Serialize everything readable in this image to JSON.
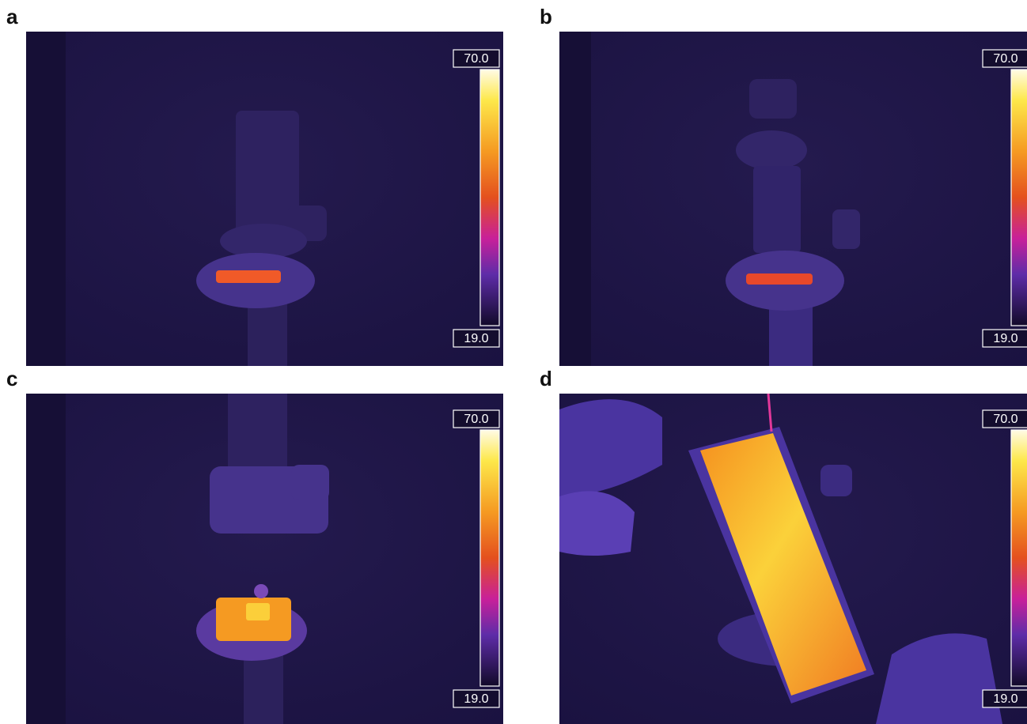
{
  "panels": [
    {
      "label": "a",
      "scale_max": "70.0",
      "scale_min": "19.0"
    },
    {
      "label": "b",
      "scale_max": "70.0",
      "scale_min": "19.0"
    },
    {
      "label": "c",
      "scale_max": "70.0",
      "scale_min": "19.0"
    },
    {
      "label": "d",
      "scale_max": "70.0",
      "scale_min": "19.0"
    }
  ]
}
